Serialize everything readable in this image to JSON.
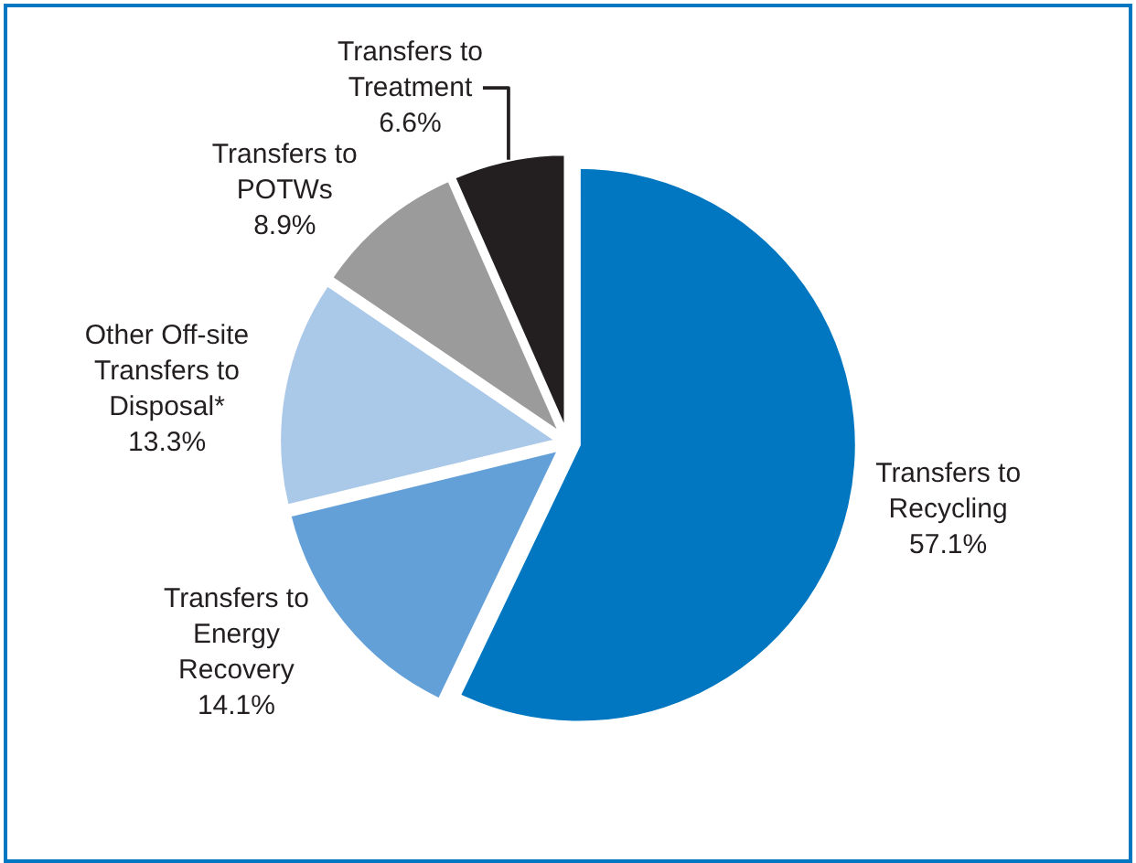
{
  "chart_data": {
    "type": "pie",
    "categories": [
      "Transfers to Recycling",
      "Transfers to Energy Recovery",
      "Other Off-site Transfers to Disposal*",
      "Transfers to POTWs",
      "Transfers to Treatment"
    ],
    "values": [
      57.1,
      14.1,
      13.3,
      8.9,
      6.6
    ],
    "colors": [
      "#0077c0",
      "#64a0d8",
      "#aac8e8",
      "#9b9b9b",
      "#231f20"
    ],
    "value_labels": [
      "57.1%",
      "14.1%",
      "13.3%",
      "8.9%",
      "6.6%"
    ],
    "legend": false
  }
}
